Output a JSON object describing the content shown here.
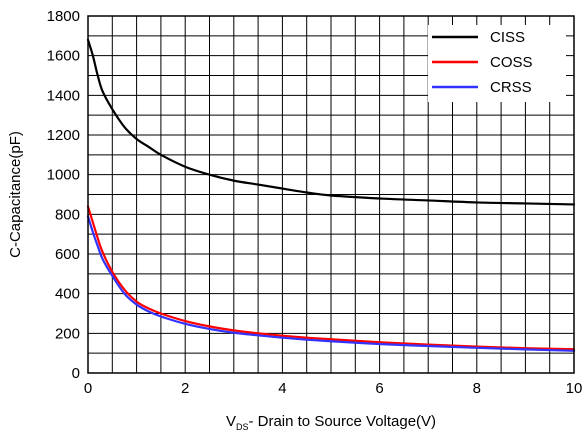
{
  "chart_data": {
    "type": "line",
    "title": "",
    "xlabel": "V",
    "xlabel_sub": "DS",
    "xlabel_rest": "- Drain to Source Voltage(V)",
    "ylabel": "C-Capacitance(pF)",
    "xlim": [
      0,
      10
    ],
    "ylim": [
      0,
      1800
    ],
    "x_ticks": [
      0,
      2,
      4,
      6,
      8,
      10
    ],
    "y_ticks": [
      0,
      200,
      400,
      600,
      800,
      1000,
      1200,
      1400,
      1600,
      1800
    ],
    "x_tick_labels": [
      "0",
      "2",
      "4",
      "6",
      "8",
      "10"
    ],
    "y_tick_labels": [
      "0",
      "200",
      "400",
      "600",
      "800",
      "1000",
      "1200",
      "1400",
      "1600",
      "1800"
    ],
    "x_grid_step": 0.5,
    "y_grid_step": 100,
    "grid": true,
    "legend_position": "top-right",
    "series": [
      {
        "name": "CISS",
        "color": "#000000",
        "x": [
          0,
          0.1,
          0.2,
          0.3,
          0.5,
          0.75,
          1,
          1.25,
          1.5,
          2,
          2.5,
          3,
          3.5,
          4,
          4.5,
          5,
          6,
          7,
          8,
          9,
          10
        ],
        "y": [
          1680,
          1600,
          1500,
          1420,
          1330,
          1240,
          1180,
          1140,
          1100,
          1040,
          1000,
          970,
          950,
          930,
          910,
          895,
          880,
          870,
          860,
          855,
          850
        ]
      },
      {
        "name": "COSS",
        "color": "#ff0000",
        "x": [
          0,
          0.1,
          0.2,
          0.3,
          0.5,
          0.75,
          1,
          1.25,
          1.5,
          2,
          2.5,
          3,
          3.5,
          4,
          4.5,
          5,
          6,
          7,
          8,
          9,
          10
        ],
        "y": [
          840,
          760,
          680,
          610,
          510,
          420,
          360,
          325,
          300,
          262,
          235,
          215,
          200,
          188,
          178,
          170,
          155,
          143,
          133,
          125,
          120
        ]
      },
      {
        "name": "CRSS",
        "color": "#3333ff",
        "x": [
          0,
          0.1,
          0.2,
          0.3,
          0.5,
          0.75,
          1,
          1.25,
          1.5,
          2,
          2.5,
          3,
          3.5,
          4,
          4.5,
          5,
          6,
          7,
          8,
          9,
          10
        ],
        "y": [
          790,
          710,
          640,
          575,
          490,
          400,
          345,
          310,
          285,
          248,
          222,
          203,
          190,
          178,
          168,
          160,
          146,
          136,
          127,
          119,
          112
        ]
      }
    ]
  }
}
